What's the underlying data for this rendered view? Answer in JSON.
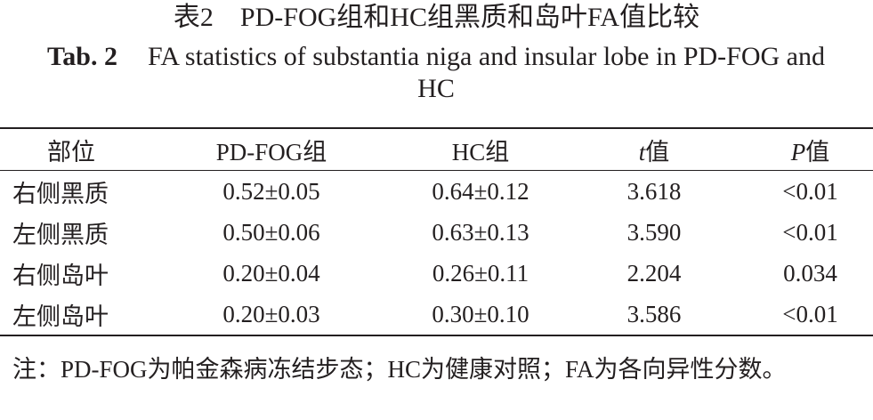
{
  "header": {
    "title_cn": "表2　PD-FOG组和HC组黑质和岛叶FA值比较",
    "table_number": "Tab. 2",
    "title_en": "FA statistics of substantia niga and insular lobe in PD-FOG and HC"
  },
  "table": {
    "columns": [
      "部位",
      "PD-FOG组",
      "HC组",
      "t值",
      "P值"
    ],
    "rows": [
      [
        "右侧黑质",
        "0.52±0.05",
        "0.64±0.12",
        "3.618",
        "<0.01"
      ],
      [
        "左侧黑质",
        "0.50±0.06",
        "0.63±0.13",
        "3.590",
        "<0.01"
      ],
      [
        "右侧岛叶",
        "0.20±0.04",
        "0.26±0.11",
        "2.204",
        "0.034"
      ],
      [
        "左侧岛叶",
        "0.20±0.03",
        "0.30±0.10",
        "3.586",
        "<0.01"
      ]
    ]
  },
  "note": "注：PD-FOG为帕金森病冻结步态；HC为健康对照；FA为各向异性分数。"
}
